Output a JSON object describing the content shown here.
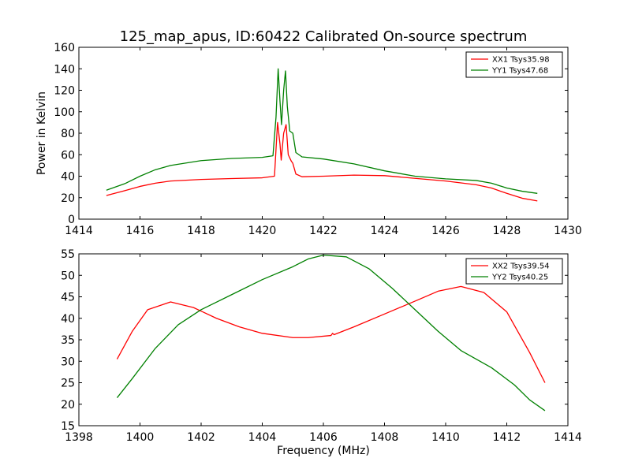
{
  "title": "125_map_apus, ID:60422 Calibrated On-source spectrum",
  "chart_data": [
    {
      "type": "line",
      "title": "125_map_apus, ID:60422 Calibrated On-source spectrum",
      "xlabel": "",
      "ylabel": "Power in Kelvin",
      "xlim": [
        1414,
        1430
      ],
      "ylim": [
        0,
        160
      ],
      "xticks": [
        1414,
        1416,
        1418,
        1420,
        1422,
        1424,
        1426,
        1428,
        1430
      ],
      "yticks": [
        0,
        20,
        40,
        60,
        80,
        100,
        120,
        140,
        160
      ],
      "grid": false,
      "legend_position": "top-right",
      "series": [
        {
          "name": "XX1 Tsys35.98",
          "color": "#ff0000",
          "points": [
            [
              1414.9,
              22
            ],
            [
              1415.5,
              26.5
            ],
            [
              1416,
              30.5
            ],
            [
              1416.5,
              33.5
            ],
            [
              1417,
              35.5
            ],
            [
              1418,
              37
            ],
            [
              1419,
              37.8
            ],
            [
              1420,
              38.5
            ],
            [
              1420.4,
              40
            ],
            [
              1420.5,
              90
            ],
            [
              1420.58,
              70
            ],
            [
              1420.62,
              55
            ],
            [
              1420.7,
              80
            ],
            [
              1420.78,
              88
            ],
            [
              1420.85,
              60
            ],
            [
              1420.95,
              54
            ],
            [
              1421.0,
              52
            ],
            [
              1421.1,
              42
            ],
            [
              1421.3,
              39.5
            ],
            [
              1422,
              40
            ],
            [
              1423,
              41
            ],
            [
              1424,
              40.5
            ],
            [
              1425,
              38
            ],
            [
              1426,
              35.5
            ],
            [
              1427,
              32
            ],
            [
              1427.5,
              29
            ],
            [
              1428,
              24
            ],
            [
              1428.5,
              19.5
            ],
            [
              1429,
              17
            ]
          ]
        },
        {
          "name": "YY1 Tsys47.68",
          "color": "#008000",
          "points": [
            [
              1414.9,
              27
            ],
            [
              1415.5,
              33
            ],
            [
              1416,
              40
            ],
            [
              1416.5,
              46
            ],
            [
              1417,
              50
            ],
            [
              1418,
              54.5
            ],
            [
              1419,
              56.5
            ],
            [
              1420,
              57.5
            ],
            [
              1420.35,
              59
            ],
            [
              1420.45,
              95
            ],
            [
              1420.52,
              140
            ],
            [
              1420.58,
              110
            ],
            [
              1420.63,
              88
            ],
            [
              1420.7,
              120
            ],
            [
              1420.76,
              138
            ],
            [
              1420.82,
              105
            ],
            [
              1420.9,
              82
            ],
            [
              1421.0,
              80
            ],
            [
              1421.1,
              62
            ],
            [
              1421.3,
              58
            ],
            [
              1422,
              56
            ],
            [
              1423,
              51.5
            ],
            [
              1424,
              45
            ],
            [
              1425,
              40
            ],
            [
              1426,
              37.5
            ],
            [
              1427,
              36
            ],
            [
              1427.5,
              33.5
            ],
            [
              1428,
              29
            ],
            [
              1428.5,
              26
            ],
            [
              1429,
              24
            ]
          ]
        }
      ]
    },
    {
      "type": "line",
      "title": "",
      "xlabel": "Frequency (MHz)",
      "ylabel": "",
      "xlim": [
        1398,
        1414
      ],
      "ylim": [
        15,
        55
      ],
      "xticks": [
        1398,
        1400,
        1402,
        1404,
        1406,
        1408,
        1410,
        1412,
        1414
      ],
      "yticks": [
        15,
        20,
        25,
        30,
        35,
        40,
        45,
        50,
        55
      ],
      "grid": false,
      "legend_position": "top-right",
      "series": [
        {
          "name": "XX2 Tsys39.54",
          "color": "#ff0000",
          "points": [
            [
              1399.25,
              30.5
            ],
            [
              1399.75,
              37
            ],
            [
              1400.25,
              42
            ],
            [
              1401,
              43.8
            ],
            [
              1401.75,
              42.5
            ],
            [
              1402.5,
              40
            ],
            [
              1403.25,
              38
            ],
            [
              1404,
              36.5
            ],
            [
              1405,
              35.5
            ],
            [
              1405.5,
              35.5
            ],
            [
              1406.25,
              36
            ],
            [
              1406.3,
              36.5
            ],
            [
              1406.35,
              36.2
            ],
            [
              1407,
              38
            ],
            [
              1408,
              41
            ],
            [
              1409,
              44
            ],
            [
              1409.75,
              46.3
            ],
            [
              1410.5,
              47.4
            ],
            [
              1411.25,
              46
            ],
            [
              1412,
              41.5
            ],
            [
              1412.75,
              32
            ],
            [
              1413.25,
              25
            ]
          ]
        },
        {
          "name": "YY2 Tsys40.25",
          "color": "#008000",
          "points": [
            [
              1399.25,
              21.5
            ],
            [
              1399.75,
              26
            ],
            [
              1400.5,
              33
            ],
            [
              1401.25,
              38.5
            ],
            [
              1402,
              42
            ],
            [
              1403,
              45.5
            ],
            [
              1404,
              49
            ],
            [
              1405,
              52
            ],
            [
              1405.5,
              53.8
            ],
            [
              1406,
              54.7
            ],
            [
              1406.75,
              54.3
            ],
            [
              1407.5,
              51.5
            ],
            [
              1408.25,
              47
            ],
            [
              1409,
              42
            ],
            [
              1409.75,
              37
            ],
            [
              1410.5,
              32.5
            ],
            [
              1411.5,
              28.5
            ],
            [
              1412.25,
              24.5
            ],
            [
              1412.75,
              21
            ],
            [
              1413.25,
              18.5
            ]
          ]
        }
      ]
    }
  ]
}
